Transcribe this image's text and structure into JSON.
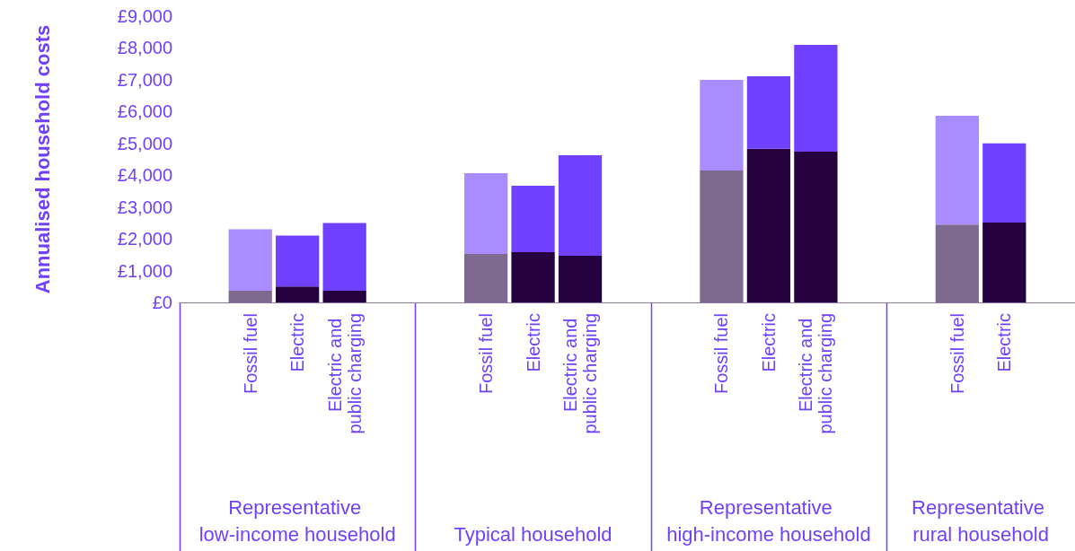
{
  "chart_data": {
    "type": "bar",
    "stacked": true,
    "ylabel": "Annualised household costs",
    "categories": [
      null,
      "Fossil fuel",
      "Electric",
      "Electric and public charging",
      null,
      null,
      "Fossil fuel",
      "Electric",
      "Electric and public charging",
      null,
      null,
      "Fossil fuel",
      "Electric",
      "Electric and public charging",
      null,
      null,
      "Fossil fuel",
      "Electric",
      null
    ],
    "series": [
      {
        "colors": [
          null,
          "#7f6a8f",
          "#24003f",
          "#24003f",
          null,
          null,
          "#7f6a8f",
          "#24003f",
          "#24003f",
          null,
          null,
          "#7f6a8f",
          "#24003f",
          "#24003f",
          null,
          null,
          "#7f6a8f",
          "#24003f",
          null
        ],
        "values": [
          null,
          370,
          500,
          370,
          null,
          null,
          1520,
          1580,
          1470,
          null,
          null,
          4150,
          4830,
          4740,
          null,
          null,
          2450,
          2510,
          null
        ]
      },
      {
        "colors": [
          null,
          "#a98cff",
          "#7040ff",
          "#7040ff",
          null,
          null,
          "#a98cff",
          "#7040ff",
          "#7040ff",
          null,
          null,
          "#a98cff",
          "#7040ff",
          "#7040ff",
          null,
          null,
          "#a98cff",
          "#7040ff",
          null
        ],
        "values": [
          null,
          1930,
          1600,
          2130,
          null,
          null,
          2540,
          2090,
          3160,
          null,
          null,
          2850,
          2280,
          3360,
          null,
          null,
          3420,
          2490,
          null
        ]
      }
    ],
    "annotations": [
      "Representative low-income household",
      "Typical household",
      "Representative high-income household",
      "Representative rural household"
    ],
    "ylim": [
      0,
      9000
    ],
    "yticks": [
      {
        "value": 0,
        "label": "£0"
      },
      {
        "value": 1000,
        "label": "£1,000"
      },
      {
        "value": 2000,
        "label": "£2,000"
      },
      {
        "value": 3000,
        "label": "£3,000"
      },
      {
        "value": 4000,
        "label": "£4,000"
      },
      {
        "value": 5000,
        "label": "£5,000"
      },
      {
        "value": 6000,
        "label": "£6,000"
      },
      {
        "value": 7000,
        "label": "£7,000"
      },
      {
        "value": 8000,
        "label": "£8,000"
      },
      {
        "value": 9000,
        "label": "£9,000"
      }
    ],
    "grid": false
  }
}
